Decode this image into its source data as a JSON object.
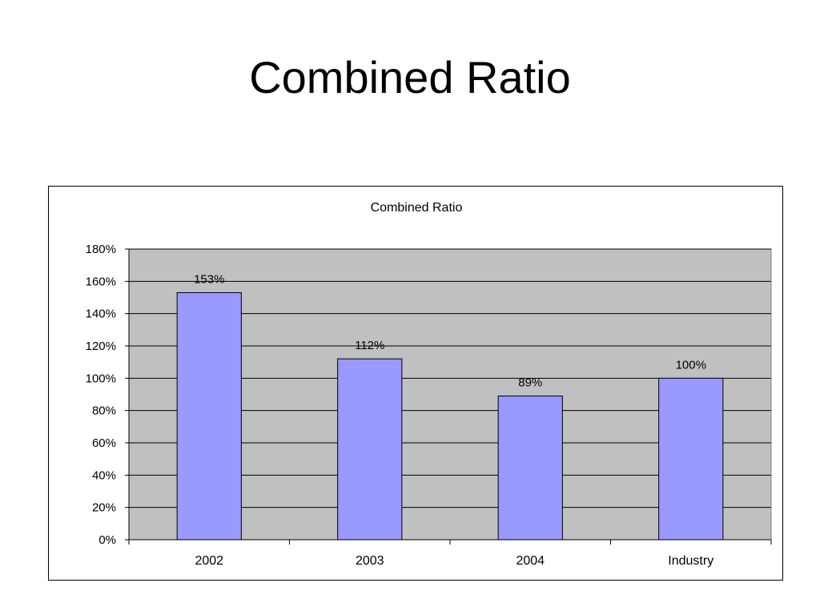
{
  "slide": {
    "title": "Combined Ratio"
  },
  "chart_data": {
    "type": "bar",
    "title": "Combined Ratio",
    "categories": [
      "2002",
      "2003",
      "2004",
      "Industry"
    ],
    "series": [
      {
        "values": [
          153,
          112,
          89,
          100
        ],
        "data_labels": [
          "153%",
          "112%",
          "89%",
          "100%"
        ]
      }
    ],
    "ylim": [
      0,
      180
    ],
    "yticks": [
      0,
      20,
      40,
      60,
      80,
      100,
      120,
      140,
      160,
      180
    ],
    "ytick_labels": [
      "0%",
      "20%",
      "40%",
      "60%",
      "80%",
      "100%",
      "120%",
      "140%",
      "160%",
      "180%"
    ],
    "grid": true,
    "legend": "none",
    "colors": {
      "bar": "#9999ff",
      "plot_background": "#c0c0c0",
      "gridline": "#000000"
    }
  }
}
